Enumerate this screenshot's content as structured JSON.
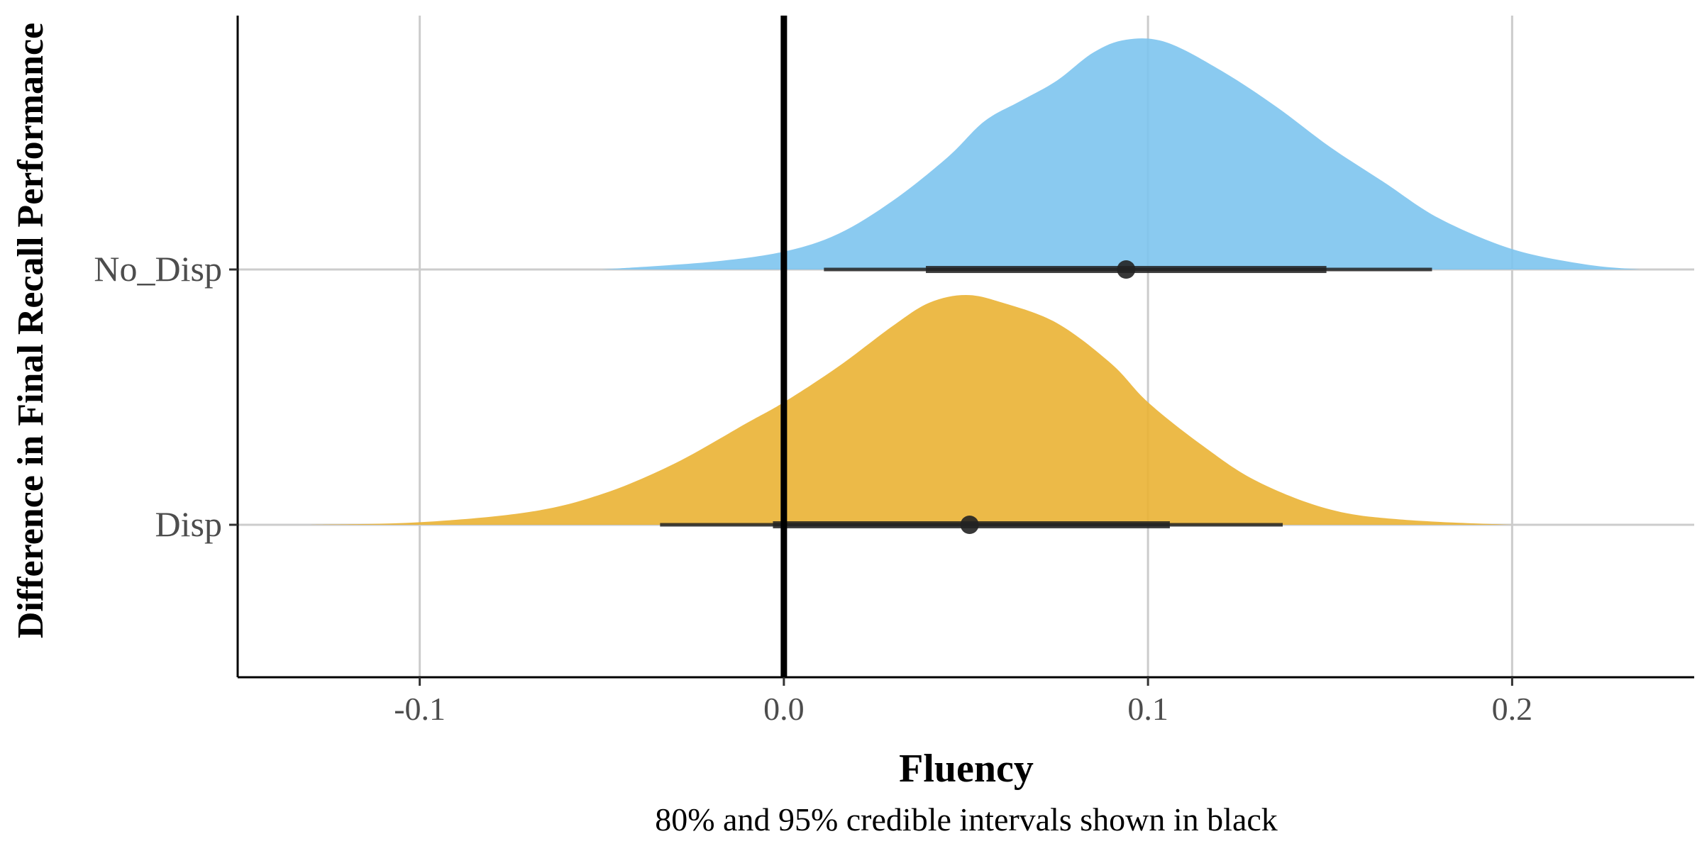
{
  "chart_data": {
    "type": "area",
    "subtype": "halfeye-density",
    "xlabel": "Fluency",
    "ylabel": "Difference in Final Recall Performance",
    "caption": "80% and 95% credible intervals shown in black",
    "xlim": [
      -0.15,
      0.25
    ],
    "x_ticks": [
      -0.1,
      0.0,
      0.1,
      0.2
    ],
    "x_tick_labels": [
      "-0.1",
      "0.0",
      "0.1",
      "0.2"
    ],
    "reference_line_x": 0.0,
    "grid": true,
    "categories": [
      "Disp",
      "No_Disp"
    ],
    "series": [
      {
        "name": "No_Disp",
        "color": "#7DC4EE",
        "point": 0.094,
        "ci80": [
          0.039,
          0.149
        ],
        "ci95": [
          0.011,
          0.178
        ],
        "density": {
          "x": [
            -0.05,
            -0.02,
            0.0,
            0.015,
            0.03,
            0.045,
            0.055,
            0.065,
            0.075,
            0.085,
            0.094,
            0.105,
            0.12,
            0.135,
            0.15,
            0.165,
            0.18,
            0.2,
            0.22,
            0.235
          ],
          "y": [
            0.0,
            0.03,
            0.07,
            0.14,
            0.27,
            0.44,
            0.58,
            0.66,
            0.74,
            0.85,
            0.9,
            0.89,
            0.78,
            0.64,
            0.48,
            0.34,
            0.2,
            0.08,
            0.02,
            0.0
          ]
        }
      },
      {
        "name": "Disp",
        "color": "#EAB334",
        "point": 0.051,
        "ci80": [
          -0.003,
          0.106
        ],
        "ci95": [
          -0.034,
          0.137
        ],
        "density": {
          "x": [
            -0.13,
            -0.1,
            -0.07,
            -0.05,
            -0.03,
            -0.01,
            0.0,
            0.015,
            0.03,
            0.04,
            0.05,
            0.06,
            0.075,
            0.09,
            0.1,
            0.115,
            0.13,
            0.15,
            0.17,
            0.2
          ],
          "y": [
            0.0,
            0.01,
            0.05,
            0.12,
            0.24,
            0.4,
            0.48,
            0.62,
            0.78,
            0.87,
            0.9,
            0.87,
            0.79,
            0.63,
            0.48,
            0.31,
            0.17,
            0.06,
            0.02,
            0.0
          ]
        }
      }
    ]
  }
}
